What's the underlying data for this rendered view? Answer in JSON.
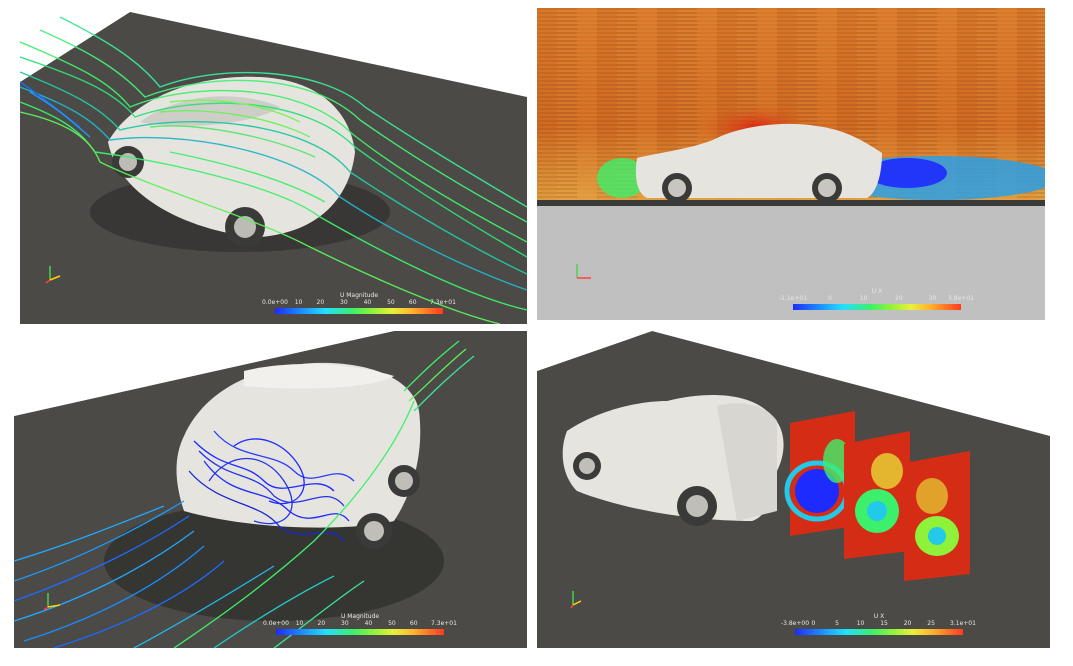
{
  "panels": [
    {
      "id": "top-left",
      "view": "streamlines over car, front three-quarter view",
      "colorbar": {
        "title": "U Magnitude",
        "ticks": [
          "0.0e+00",
          "10",
          "20",
          "30",
          "40",
          "50",
          "60",
          "7.3e+01"
        ]
      }
    },
    {
      "id": "top-right",
      "view": "side view surface LIC of U X",
      "colorbar": {
        "title": "U X",
        "ticks": [
          "-1.1e+01",
          "0",
          "10",
          "20",
          "30",
          "3.8e+01"
        ]
      }
    },
    {
      "id": "bottom-left",
      "view": "streamlines over car, rear three-quarter view",
      "colorbar": {
        "title": "U Magnitude",
        "ticks": [
          "0.0e+00",
          "10",
          "20",
          "30",
          "40",
          "50",
          "60",
          "7.3e+01"
        ]
      }
    },
    {
      "id": "bottom-right",
      "view": "wake slices colored by U X",
      "colorbar": {
        "title": "U X",
        "ticks": [
          "-3.8e+00",
          "0",
          "5",
          "10",
          "15",
          "20",
          "25",
          "3.1e+01"
        ]
      }
    }
  ],
  "colors": {
    "ground": "#4b4a46",
    "sky": "#ffffff",
    "car": "#e6e4df",
    "slow": "#1e2bff",
    "mid": "#3df06b",
    "fast": "#ff3a1f"
  }
}
